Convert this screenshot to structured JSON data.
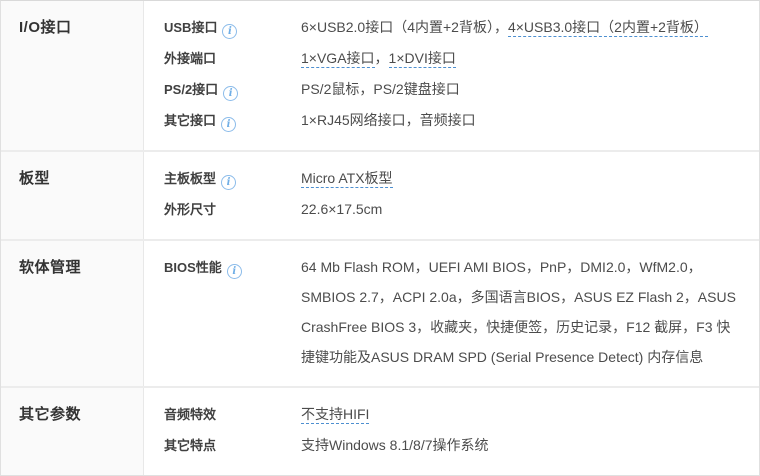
{
  "info_icon_glyph": "i",
  "colors": {
    "outer_border": "#e0e0e0",
    "section_divider": "#ececec",
    "left_cell_bg": "#fafafa",
    "title_text": "#333333",
    "label_text": "#404040",
    "value_text": "#4c4c4c",
    "link_underline": "#4d8fd0",
    "info_icon": "#8cbcea"
  },
  "sections": [
    {
      "title": "I/O接口",
      "rows": [
        {
          "label": "USB接口",
          "info": true,
          "parts": [
            {
              "text": "6×USB2.0接口（4内置+2背板），",
              "link": false
            },
            {
              "text": "4×USB3.0接口（2内置+2背板）",
              "link": true
            }
          ]
        },
        {
          "label": "外接端口",
          "info": false,
          "parts": [
            {
              "text": "1×VGA接口",
              "link": true
            },
            {
              "text": "，",
              "link": false
            },
            {
              "text": "1×DVI接口",
              "link": true
            }
          ]
        },
        {
          "label": "PS/2接口",
          "info": true,
          "parts": [
            {
              "text": "PS/2鼠标，PS/2键盘接口",
              "link": false
            }
          ]
        },
        {
          "label": "其它接口",
          "info": true,
          "parts": [
            {
              "text": "1×RJ45网络接口，音频接口",
              "link": false
            }
          ]
        }
      ]
    },
    {
      "title": "板型",
      "rows": [
        {
          "label": "主板板型",
          "info": true,
          "parts": [
            {
              "text": "Micro ATX板型",
              "link": true
            }
          ]
        },
        {
          "label": "外形尺寸",
          "info": false,
          "parts": [
            {
              "text": "22.6×17.5cm",
              "link": false
            }
          ]
        }
      ]
    },
    {
      "title": "软体管理",
      "rows": [
        {
          "label": "BIOS性能",
          "info": true,
          "multiline": true,
          "parts": [
            {
              "text": "64 Mb Flash ROM，UEFI AMI BIOS，PnP，DMI2.0，WfM2.0，SMBIOS 2.7，ACPI 2.0a，多国语言BIOS，ASUS EZ Flash 2，ASUS CrashFree BIOS 3，收藏夹，快捷便签，历史记录，F12 截屏，F3 快捷键功能及ASUS DRAM SPD (Serial Presence Detect) 内存信息",
              "link": false
            }
          ]
        }
      ]
    },
    {
      "title": "其它参数",
      "rows": [
        {
          "label": "音频特效",
          "info": false,
          "parts": [
            {
              "text": "不支持HIFI",
              "link": true
            }
          ]
        },
        {
          "label": "其它特点",
          "info": false,
          "parts": [
            {
              "text": "支持Windows 8.1/8/7操作系统",
              "link": false
            }
          ]
        }
      ]
    }
  ]
}
